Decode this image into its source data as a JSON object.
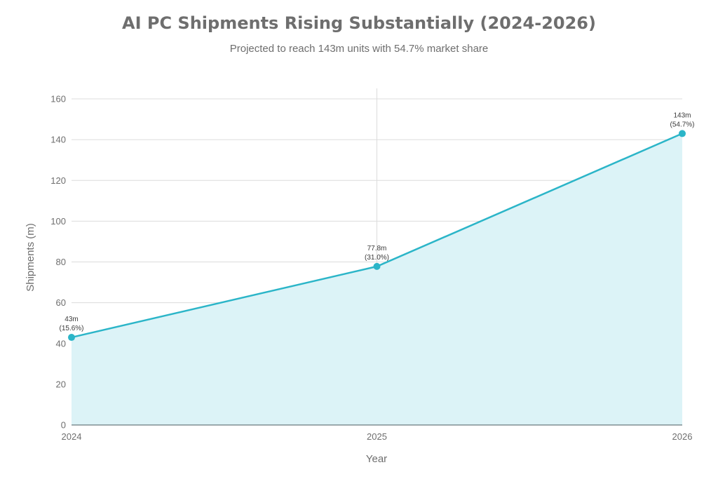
{
  "chart_data": {
    "type": "area",
    "title": "AI PC Shipments Rising Substantially (2024-2026)",
    "subtitle": "Projected to reach 143m units with 54.7% market share",
    "xlabel": "Year",
    "ylabel": "Shipments (m)",
    "x": [
      "2024",
      "2025",
      "2026"
    ],
    "series": [
      {
        "values": [
          43,
          77.8,
          143
        ],
        "labels": [
          [
            "43m",
            "(15.6%)"
          ],
          [
            "77.8m",
            "(31.0%)"
          ],
          [
            "143m",
            "(54.7%)"
          ]
        ]
      }
    ],
    "ylim": [
      0,
      165
    ],
    "yticks": [
      "0",
      "20",
      "40",
      "60",
      "80",
      "100",
      "120",
      "140",
      "160"
    ],
    "grid": true,
    "line_color": "#2bb5c8",
    "fill_color": "#dcf3f7"
  }
}
